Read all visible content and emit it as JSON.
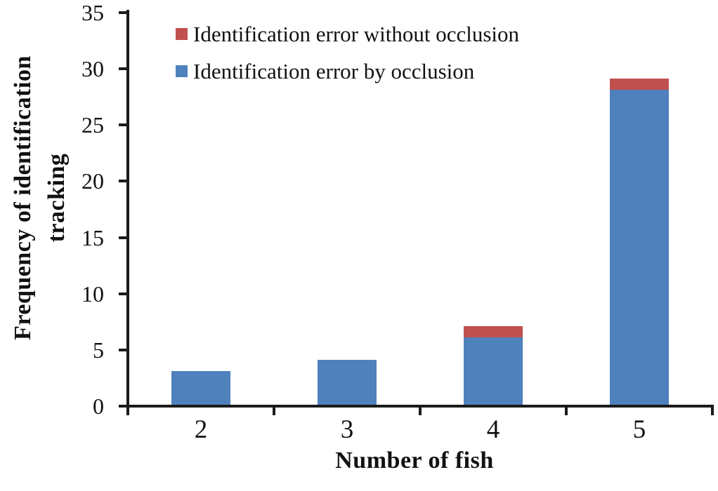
{
  "chart_data": {
    "type": "bar",
    "stacked": true,
    "title": "",
    "categories": [
      "2",
      "3",
      "4",
      "5"
    ],
    "series": [
      {
        "name": "Identification error by occlusion",
        "color": "#4F81BD",
        "values": [
          3,
          4,
          6,
          28
        ]
      },
      {
        "name": "Identification error without occlusion",
        "color": "#C0504D",
        "values": [
          0,
          0,
          1,
          1
        ]
      }
    ],
    "legend": [
      {
        "label": "Identification error without occlusion",
        "color": "#C0504D"
      },
      {
        "label": "Identification error by occlusion",
        "color": "#4F81BD"
      }
    ],
    "legend_position": "top-left-inside",
    "xlabel": "Number of fish",
    "ylabel": "Frequency of identification tracking",
    "ylabel_lines": [
      "Frequency of identification",
      "tracking"
    ],
    "ylim": [
      0,
      35
    ],
    "ytick_step": 5,
    "yticks": [
      0,
      5,
      10,
      15,
      20,
      25,
      30,
      35
    ],
    "grid": false,
    "axis_color": "#1b1b1b",
    "background": "#ffffff"
  }
}
